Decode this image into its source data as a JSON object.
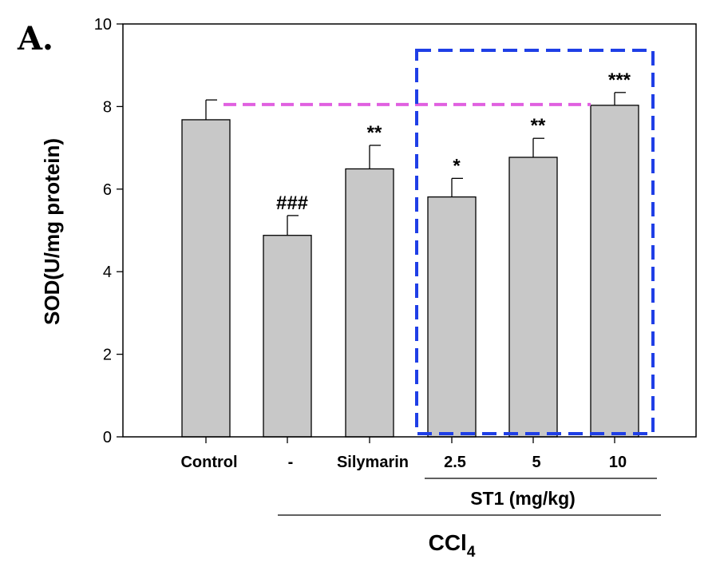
{
  "panel_label": "A.",
  "colors": {
    "bar_fill": "#c8c8c8",
    "highlight_box": "#1f3fe6",
    "reference_line": "#e060e0"
  },
  "chart_data": {
    "type": "bar",
    "categories": [
      "Control",
      "-",
      "Silymarin",
      "2.5",
      "5",
      "10"
    ],
    "values": [
      7.68,
      4.88,
      6.49,
      5.81,
      6.77,
      8.03
    ],
    "errors": [
      0.48,
      0.48,
      0.57,
      0.45,
      0.46,
      0.31
    ],
    "significance": [
      "",
      "###",
      "**",
      "*",
      "**",
      "***"
    ],
    "ylabel": "SOD(U/mg protein)",
    "ylim": [
      0,
      10
    ],
    "yticks": [
      0,
      2,
      4,
      6,
      8,
      10
    ],
    "group_labels": {
      "st1": "ST1 (mg/kg)",
      "ccl4": "CCl",
      "ccl4_subscript": "4"
    },
    "reference_line_value": 8.03,
    "highlight_categories": [
      "2.5",
      "5",
      "10"
    ]
  }
}
